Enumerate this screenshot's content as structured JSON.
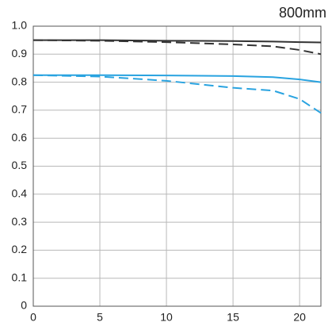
{
  "chart_data": {
    "type": "line",
    "title": "800mm",
    "x": [
      0,
      5,
      10,
      15,
      18,
      20,
      21.6
    ],
    "series": [
      {
        "color": "#333333",
        "dash": false,
        "values": [
          0.95,
          0.95,
          0.948,
          0.947,
          0.945,
          0.943,
          0.942
        ]
      },
      {
        "color": "#333333",
        "dash": true,
        "values": [
          0.95,
          0.948,
          0.943,
          0.935,
          0.928,
          0.915,
          0.9
        ]
      },
      {
        "color": "#29a3e0",
        "dash": false,
        "values": [
          0.825,
          0.825,
          0.824,
          0.822,
          0.818,
          0.81,
          0.8
        ]
      },
      {
        "color": "#29a3e0",
        "dash": true,
        "values": [
          0.825,
          0.82,
          0.805,
          0.78,
          0.77,
          0.74,
          0.69
        ]
      }
    ],
    "xlim": [
      0,
      21.6
    ],
    "xticks": [
      0,
      5,
      10,
      15,
      20
    ],
    "ylim": [
      0,
      1
    ],
    "yticks": [
      0,
      0.1,
      0.2,
      0.3,
      0.4,
      0.5,
      0.6,
      0.7,
      0.8,
      0.9,
      {
        "value": 1,
        "label": "1.0"
      }
    ],
    "grid": true
  }
}
